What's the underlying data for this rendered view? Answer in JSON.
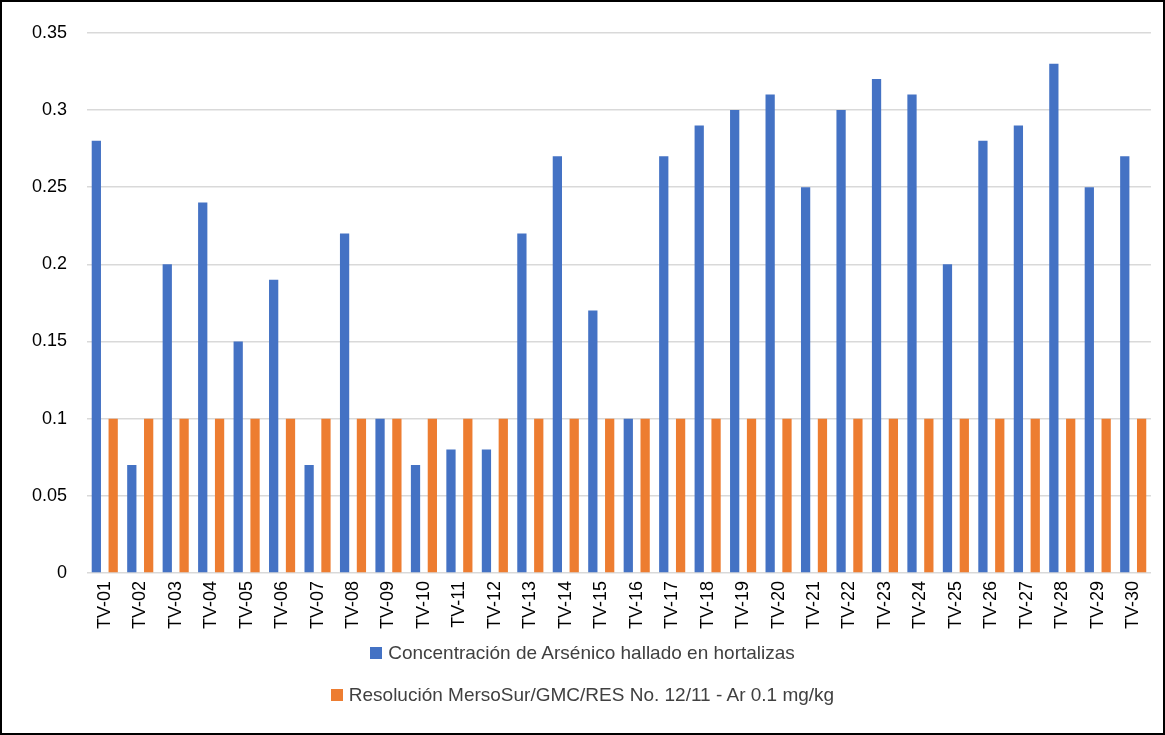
{
  "chart_data": {
    "type": "bar",
    "categories": [
      "TV-01",
      "TV-02",
      "TV-03",
      "TV-04",
      "TV-05",
      "TV-06",
      "TV-07",
      "TV-08",
      "TV-09",
      "TV-10",
      "TV-11",
      "TV-12",
      "TV-13",
      "TV-14",
      "TV-15",
      "TV-16",
      "TV-17",
      "TV-18",
      "TV-19",
      "TV-20",
      "TV-21",
      "TV-22",
      "TV-23",
      "TV-24",
      "TV-25",
      "TV-26",
      "TV-27",
      "TV-28",
      "TV-29",
      "TV-30"
    ],
    "series": [
      {
        "name": "Concentración de Arsénico hallado en hortalizas",
        "color": "#4472c4",
        "values": [
          0.28,
          0.07,
          0.2,
          0.24,
          0.15,
          0.19,
          0.07,
          0.22,
          0.1,
          0.07,
          0.08,
          0.08,
          0.22,
          0.27,
          0.17,
          0.1,
          0.27,
          0.29,
          0.3,
          0.31,
          0.25,
          0.3,
          0.32,
          0.31,
          0.2,
          0.28,
          0.29,
          0.33,
          0.25,
          0.27
        ]
      },
      {
        "name": "Resolución MersoSur/GMC/RES No. 12/11 - Ar 0.1 mg/kg",
        "color": "#ed7d31",
        "values": [
          0.1,
          0.1,
          0.1,
          0.1,
          0.1,
          0.1,
          0.1,
          0.1,
          0.1,
          0.1,
          0.1,
          0.1,
          0.1,
          0.1,
          0.1,
          0.1,
          0.1,
          0.1,
          0.1,
          0.1,
          0.1,
          0.1,
          0.1,
          0.1,
          0.1,
          0.1,
          0.1,
          0.1,
          0.1,
          0.1
        ]
      }
    ],
    "ylim": [
      0,
      0.35
    ],
    "yticks": [
      0,
      0.05,
      0.1,
      0.15,
      0.2,
      0.25,
      0.3,
      0.35
    ],
    "grid": "y",
    "legend": "bottom"
  }
}
